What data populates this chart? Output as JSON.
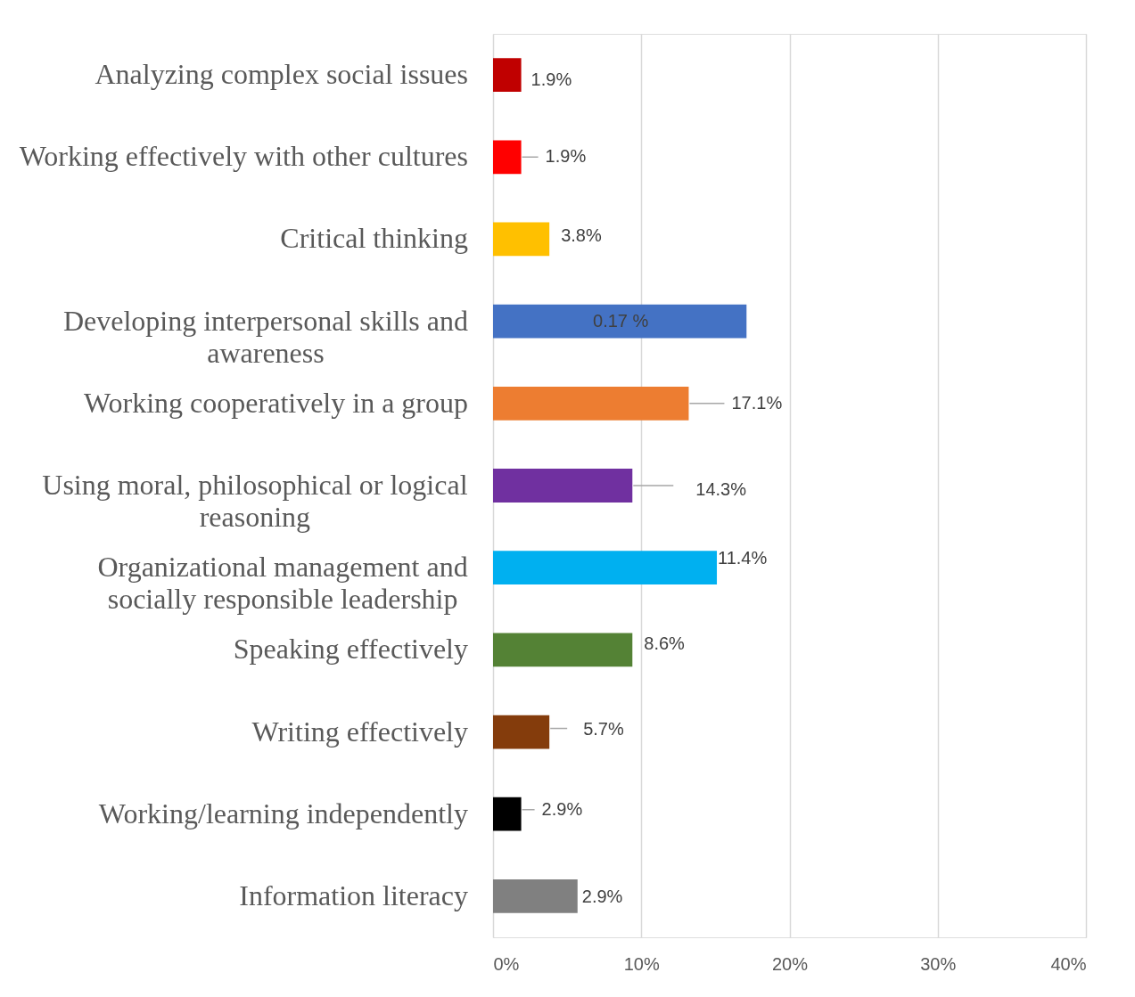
{
  "chart_data": {
    "type": "bar",
    "orientation": "horizontal",
    "categories": [
      "Analyzing complex social issues",
      "Working effectively with other cultures",
      "Critical thinking",
      "Developing interpersonal skills and awareness",
      "Working cooperatively in a group",
      "Using moral, philosophical or logical reasoning",
      "Organizational management and socially responsible leadership",
      "Speaking effectively",
      "Writing effectively",
      "Working/learning independently",
      "Information literacy"
    ],
    "values": [
      1.9,
      1.9,
      3.8,
      17.1,
      13.2,
      9.4,
      15.1,
      9.4,
      3.8,
      1.9,
      5.7
    ],
    "colors": [
      "#c00000",
      "#ff0000",
      "#ffc000",
      "#4472c4",
      "#ed7d31",
      "#7030a0",
      "#00b0f0",
      "#548235",
      "#843c0c",
      "#000000",
      "#808080"
    ],
    "annotations": [
      {
        "text": "1.9%",
        "x": 1.9,
        "y": "Analyzing complex social issues"
      },
      {
        "text": "1.9%",
        "x": 1.9,
        "y": "Working effectively with other cultures"
      },
      {
        "text": "3.8%",
        "x": 3.8,
        "y": "Critical thinking"
      },
      "0.17 %",
      {
        "text": "17.1%",
        "x": 13.2,
        "y": "Working cooperatively in a group"
      },
      {
        "text": "14.3%",
        "x": 9.4,
        "y": "Using moral, philosophical or logical reasoning"
      },
      {
        "text": "11.4%",
        "x": 15.1,
        "y": "Organizational management and socially responsible leadership"
      },
      {
        "text": "8.6%",
        "x": 9.4,
        "y": "Speaking effectively"
      },
      {
        "text": "5.7%",
        "x": 3.8,
        "y": "Writing effectively"
      },
      {
        "text": "2.9%",
        "x": 1.9,
        "y": "Working/learning independently"
      },
      {
        "text": "2.9%",
        "x": 5.7,
        "y": "Information literacy"
      }
    ],
    "xlim": [
      0,
      40
    ],
    "xticks": [
      {
        "value": 0,
        "label": "0%"
      },
      {
        "value": 10,
        "label": "10%"
      },
      {
        "value": 20,
        "label": "20%"
      },
      {
        "value": 30,
        "label": "30%"
      },
      {
        "value": 40,
        "label": "40%"
      }
    ],
    "grid": "x",
    "legend": false
  }
}
